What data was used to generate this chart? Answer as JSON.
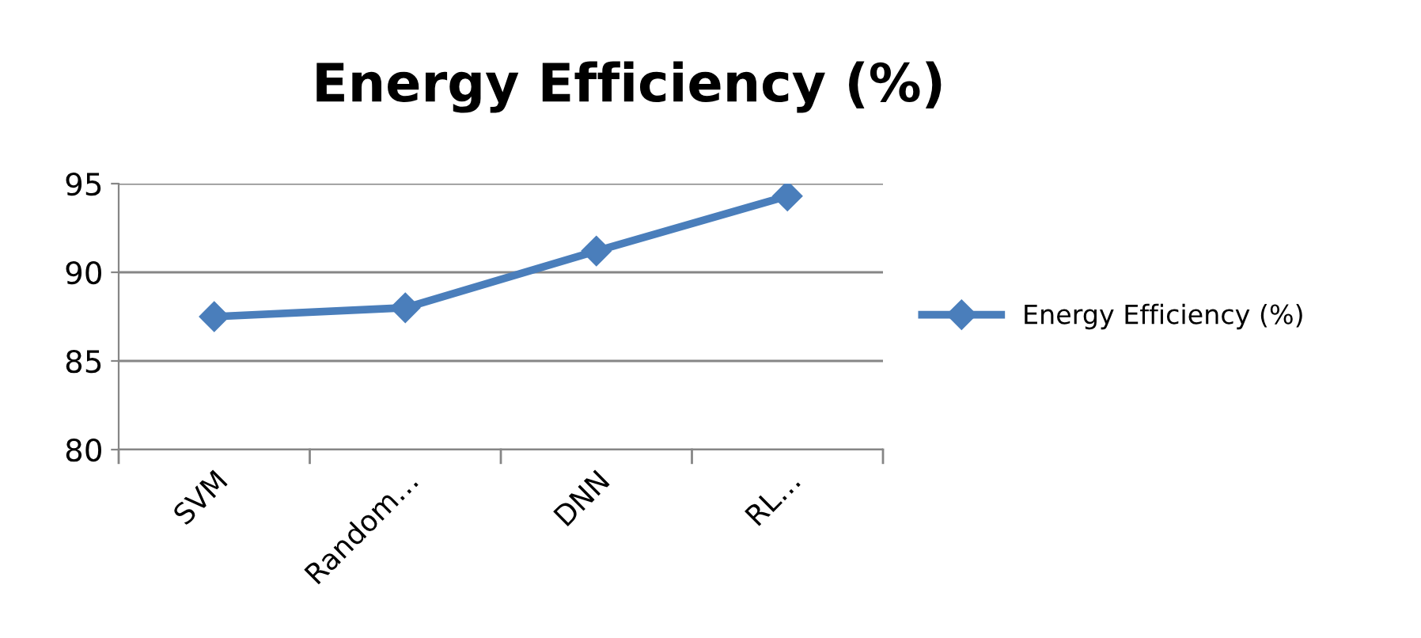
{
  "chart_data": {
    "type": "line",
    "title": "Energy Efficiency (%)",
    "categories": [
      "SVM",
      "Random…",
      "DNN",
      "RL…"
    ],
    "series": [
      {
        "name": "Energy Efficiency (%)",
        "color": "#4a7ebb",
        "values": [
          87.5,
          88.0,
          91.2,
          94.3
        ]
      }
    ],
    "ylim": [
      80,
      95
    ],
    "yticks": [
      80,
      85,
      90,
      95
    ],
    "grid": "y",
    "legend": "right",
    "marker": "diamond",
    "line_style": "solid"
  }
}
